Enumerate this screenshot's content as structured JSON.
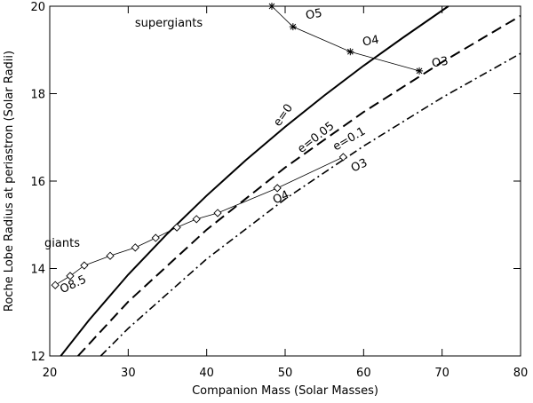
{
  "chart_data": {
    "type": "line",
    "xlabel": "Companion Mass (Solar Masses)",
    "ylabel": "Roche Lobe Radius at periastron (Solar Radii)",
    "xlim": [
      20,
      80
    ],
    "xticks": [
      20,
      30,
      40,
      50,
      60,
      70,
      80
    ],
    "ylim": [
      12,
      20
    ],
    "yticks": [
      12,
      14,
      16,
      18,
      20
    ],
    "grid": false,
    "series": [
      {
        "name": "e=0",
        "color": "#000000",
        "style": "solid",
        "marker": "none",
        "x": [
          21.4,
          25,
          30,
          35,
          40,
          45,
          50,
          55,
          60,
          65,
          70.8
        ],
        "values": [
          12,
          12.82,
          13.86,
          14.8,
          15.67,
          16.48,
          17.24,
          17.96,
          18.64,
          19.28,
          20
        ]
      },
      {
        "name": "e=0.05",
        "color": "#000000",
        "style": "dashed",
        "marker": "none",
        "x": [
          23.6,
          30,
          40,
          50,
          60,
          70,
          80
        ],
        "values": [
          12,
          13.24,
          14.89,
          16.31,
          17.58,
          18.72,
          19.78
        ]
      },
      {
        "name": "e=0.1",
        "color": "#000000",
        "style": "dashdot",
        "marker": "none",
        "x": [
          26.5,
          30,
          40,
          50,
          60,
          70,
          80
        ],
        "values": [
          12,
          12.63,
          14.22,
          15.59,
          16.8,
          17.91,
          18.92
        ]
      },
      {
        "name": "giants",
        "color": "#000000",
        "style": "thin",
        "marker": "diamond",
        "x": [
          20.7,
          22.6,
          24.4,
          27.7,
          30.9,
          33.5,
          36.2,
          38.7,
          41.4,
          49.0,
          57.4
        ],
        "values": [
          13.62,
          13.83,
          14.07,
          14.29,
          14.48,
          14.7,
          14.94,
          15.13,
          15.27,
          15.84,
          16.55
        ]
      },
      {
        "name": "supergiants",
        "color": "#000000",
        "style": "thin",
        "marker": "asterisk",
        "x": [
          48.3,
          51.0,
          58.3,
          67.1
        ],
        "values": [
          20.0,
          19.53,
          18.96,
          18.52
        ]
      }
    ],
    "annotations": [
      {
        "text": "O5"
      },
      {
        "text": "O4"
      },
      {
        "text": "O3"
      },
      {
        "text": "O3"
      },
      {
        "text": "O4"
      },
      {
        "text": "O8.5"
      }
    ]
  }
}
